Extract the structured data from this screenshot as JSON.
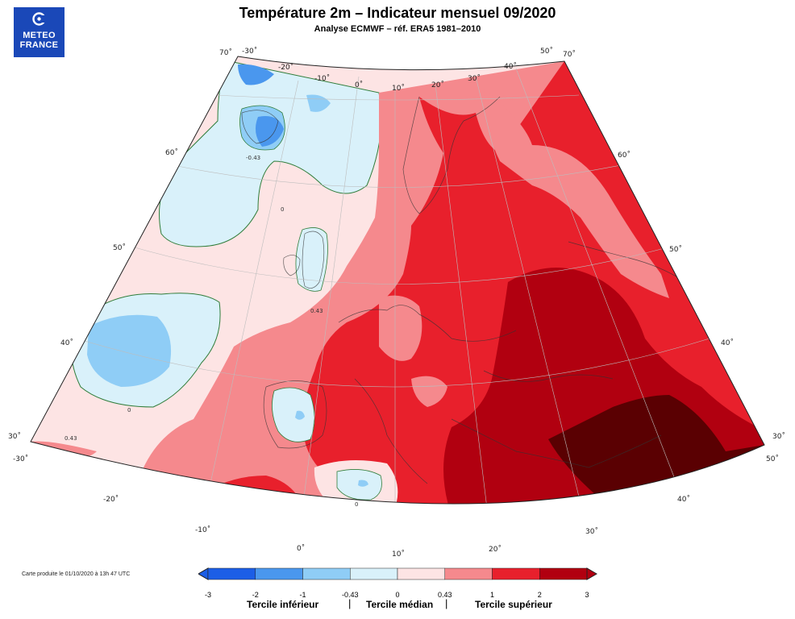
{
  "logo": {
    "line1": "METEO",
    "line2": "FRANCE"
  },
  "header": {
    "title": "Température 2m – Indicateur mensuel 09/2020",
    "subtitle": "Analyse ECMWF – réf. ERA5 1981–2010"
  },
  "credit": "Carte produite le 01/10/2020 à 13h 47 UTC",
  "map": {
    "longitude_labels": [
      "-30˚",
      "-20˚",
      "-10˚",
      "0˚",
      "10˚",
      "20˚",
      "30˚",
      "40˚",
      "50˚"
    ],
    "latitude_labels": [
      "30˚",
      "40˚",
      "50˚",
      "60˚",
      "70˚"
    ],
    "contour_labels": [
      "-0.43",
      "0",
      "0.43"
    ]
  },
  "legend": {
    "ticks": [
      "-3",
      "-2",
      "-1",
      "-0.43",
      "0",
      "0.43",
      "1",
      "2",
      "3"
    ],
    "colors": [
      "#1c5ee6",
      "#4a97ee",
      "#8fcdf6",
      "#d9f1fa",
      "#fde4e4",
      "#f5898d",
      "#e8202c",
      "#b10010"
    ],
    "terciles": [
      "Tercile inférieur",
      "Tercile médian",
      "Tercile supérieur"
    ],
    "separator": "|"
  }
}
